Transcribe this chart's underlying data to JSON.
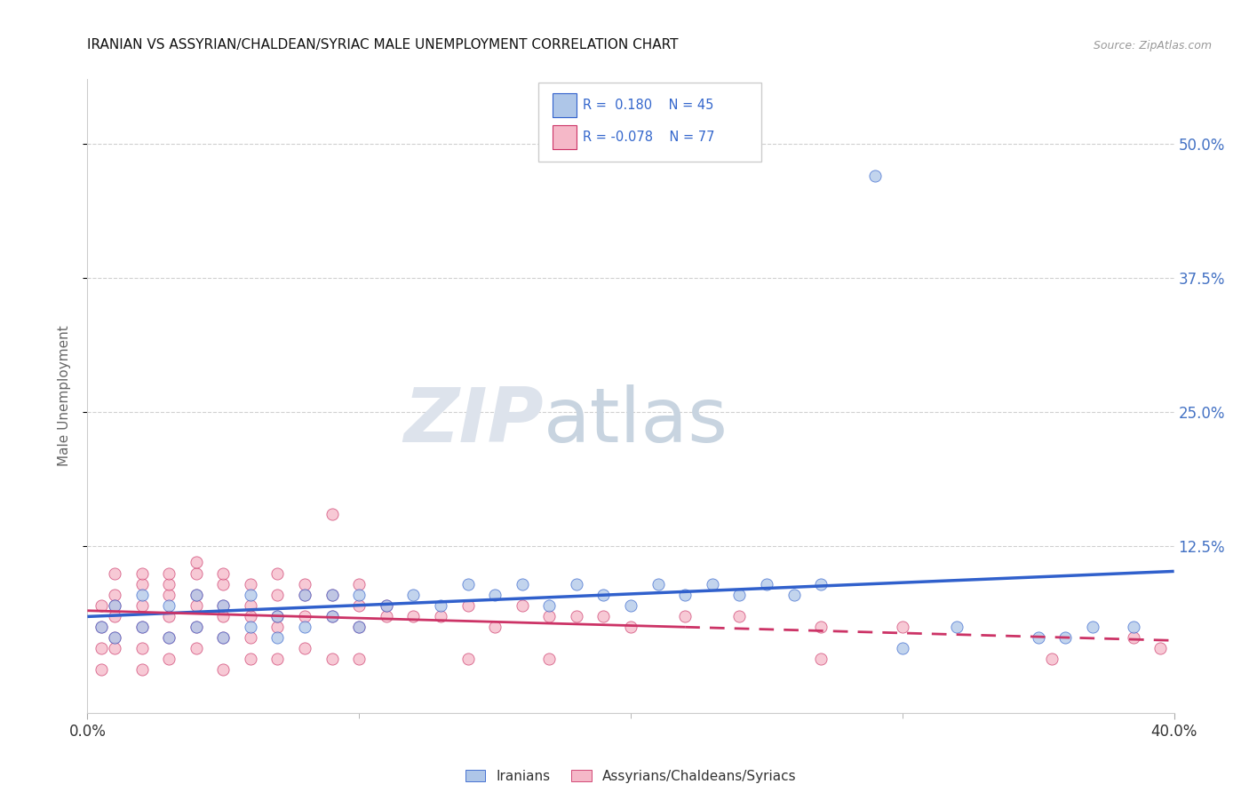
{
  "title": "IRANIAN VS ASSYRIAN/CHALDEAN/SYRIAC MALE UNEMPLOYMENT CORRELATION CHART",
  "source": "Source: ZipAtlas.com",
  "ylabel": "Male Unemployment",
  "ytick_labels": [
    "50.0%",
    "37.5%",
    "25.0%",
    "12.5%"
  ],
  "ytick_values": [
    0.5,
    0.375,
    0.25,
    0.125
  ],
  "xlim": [
    0.0,
    0.4
  ],
  "ylim": [
    -0.03,
    0.56
  ],
  "legend1_R": "0.180",
  "legend1_N": "45",
  "legend2_R": "-0.078",
  "legend2_N": "77",
  "iranians_color": "#aec6e8",
  "assyrians_color": "#f5b8c8",
  "trend_iranian_color": "#3060cc",
  "trend_assyrian_color": "#cc3366",
  "legend_label1": "Iranians",
  "legend_label2": "Assyrians/Chaldeans/Syriacs",
  "iran_x": [
    0.005,
    0.01,
    0.01,
    0.02,
    0.02,
    0.03,
    0.03,
    0.04,
    0.04,
    0.05,
    0.05,
    0.06,
    0.06,
    0.07,
    0.07,
    0.08,
    0.08,
    0.09,
    0.09,
    0.1,
    0.1,
    0.11,
    0.12,
    0.13,
    0.14,
    0.15,
    0.16,
    0.17,
    0.18,
    0.19,
    0.2,
    0.21,
    0.22,
    0.23,
    0.24,
    0.25,
    0.26,
    0.27,
    0.3,
    0.32,
    0.35,
    0.36,
    0.37,
    0.385,
    0.29
  ],
  "iran_y": [
    0.05,
    0.04,
    0.07,
    0.05,
    0.08,
    0.04,
    0.07,
    0.05,
    0.08,
    0.04,
    0.07,
    0.05,
    0.08,
    0.04,
    0.06,
    0.05,
    0.08,
    0.06,
    0.08,
    0.05,
    0.08,
    0.07,
    0.08,
    0.07,
    0.09,
    0.08,
    0.09,
    0.07,
    0.09,
    0.08,
    0.07,
    0.09,
    0.08,
    0.09,
    0.08,
    0.09,
    0.08,
    0.09,
    0.03,
    0.05,
    0.04,
    0.04,
    0.05,
    0.05,
    0.47
  ],
  "assyr_x": [
    0.005,
    0.005,
    0.01,
    0.01,
    0.01,
    0.01,
    0.01,
    0.02,
    0.02,
    0.02,
    0.02,
    0.03,
    0.03,
    0.03,
    0.03,
    0.03,
    0.04,
    0.04,
    0.04,
    0.04,
    0.04,
    0.05,
    0.05,
    0.05,
    0.05,
    0.05,
    0.06,
    0.06,
    0.06,
    0.06,
    0.07,
    0.07,
    0.07,
    0.07,
    0.08,
    0.08,
    0.08,
    0.09,
    0.09,
    0.1,
    0.1,
    0.1,
    0.11,
    0.11,
    0.12,
    0.13,
    0.14,
    0.15,
    0.16,
    0.17,
    0.18,
    0.19,
    0.2,
    0.22,
    0.24,
    0.27,
    0.3,
    0.005,
    0.005,
    0.01,
    0.02,
    0.02,
    0.03,
    0.04,
    0.05,
    0.06,
    0.07,
    0.08,
    0.09,
    0.1,
    0.14,
    0.17,
    0.27,
    0.355,
    0.385,
    0.395,
    0.09
  ],
  "assyr_y": [
    0.05,
    0.07,
    0.04,
    0.06,
    0.08,
    0.1,
    0.07,
    0.05,
    0.07,
    0.09,
    0.1,
    0.04,
    0.06,
    0.08,
    0.09,
    0.1,
    0.05,
    0.07,
    0.08,
    0.1,
    0.11,
    0.04,
    0.06,
    0.07,
    0.09,
    0.1,
    0.04,
    0.06,
    0.07,
    0.09,
    0.05,
    0.06,
    0.08,
    0.1,
    0.06,
    0.08,
    0.09,
    0.06,
    0.08,
    0.05,
    0.07,
    0.09,
    0.06,
    0.07,
    0.06,
    0.06,
    0.07,
    0.05,
    0.07,
    0.06,
    0.06,
    0.06,
    0.05,
    0.06,
    0.06,
    0.05,
    0.05,
    0.03,
    0.01,
    0.03,
    0.03,
    0.01,
    0.02,
    0.03,
    0.01,
    0.02,
    0.02,
    0.03,
    0.02,
    0.02,
    0.02,
    0.02,
    0.02,
    0.02,
    0.04,
    0.03,
    0.155
  ]
}
